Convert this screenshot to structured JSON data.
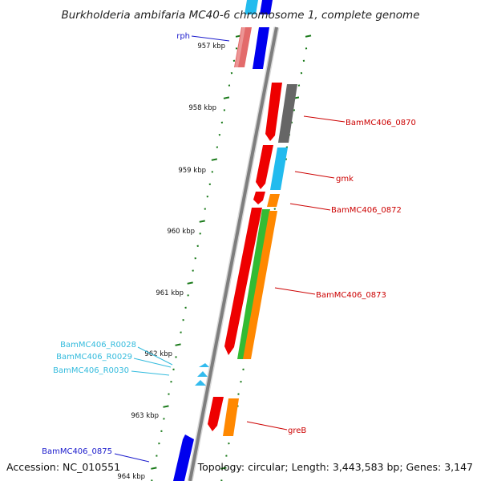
{
  "header": {
    "title": "Burkholderia ambifaria MC40-6 chromosome 1, complete genome"
  },
  "footer": {
    "accession": "Accession: NC_010551",
    "topology": "Topology: circular; Length: 3,443,583 bp; Genes: 3,147"
  },
  "colors": {
    "backbone": "#8a8a8a",
    "tick_major": "#1a7a1a",
    "tick_minor": "#1a8a1a",
    "label_dark_blue": "#1a1acc",
    "label_red": "#cc0000",
    "label_cyan": "#33bbdd"
  },
  "ruler": {
    "ticks": [
      {
        "label": "957 kbp"
      },
      {
        "label": "958 kbp"
      },
      {
        "label": "959 kbp"
      },
      {
        "label": "960 kbp"
      },
      {
        "label": "961 kbp"
      },
      {
        "label": "962 kbp"
      },
      {
        "label": "963 kbp"
      },
      {
        "label": "964 kbp"
      }
    ]
  },
  "features": [
    {
      "name": "rph",
      "label_color": "#1a1acc",
      "colors": [
        "#e36b6b",
        "#0000ee"
      ]
    },
    {
      "name": "BamMC406_0870",
      "label_color": "#cc0000",
      "colors": [
        "#ee0000",
        "#666666"
      ]
    },
    {
      "name": "gmk",
      "label_color": "#cc0000",
      "colors": [
        "#ee0000",
        "#22bbee"
      ]
    },
    {
      "name": "BamMC406_0872",
      "label_color": "#cc0000",
      "colors": [
        "#ee0000",
        "#ff8800"
      ]
    },
    {
      "name": "BamMC406_0873",
      "label_color": "#cc0000",
      "colors": [
        "#ee0000",
        "#33bb33",
        "#ff8800"
      ]
    },
    {
      "name": "BamMC406_R0028",
      "label_color": "#33bbdd",
      "colors": [
        "#33bbee"
      ]
    },
    {
      "name": "BamMC406_R0029",
      "label_color": "#33bbdd",
      "colors": [
        "#33bbee"
      ]
    },
    {
      "name": "BamMC406_R0030",
      "label_color": "#33bbdd",
      "colors": [
        "#33bbee"
      ]
    },
    {
      "name": "greB",
      "label_color": "#cc0000",
      "colors": [
        "#ee0000",
        "#ff8800"
      ]
    },
    {
      "name": "BamMC406_0875",
      "label_color": "#1a1acc",
      "colors": [
        "#0000ee"
      ]
    }
  ]
}
